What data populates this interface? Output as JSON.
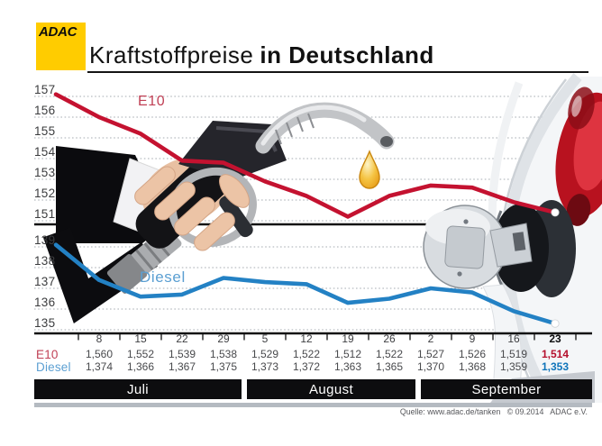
{
  "header": {
    "logo": "ADAC",
    "title_light": "Kraftstoffpreise",
    "title_bold": "in Deutschland"
  },
  "chart_data": {
    "type": "line",
    "title": "Kraftstoffpreise in Deutschland",
    "grid": "dotted-horizontal",
    "legend_position": "inline-labels",
    "x_tick_labels": [
      "8",
      "15",
      "22",
      "29",
      "5",
      "12",
      "19",
      "26",
      "2",
      "9",
      "16",
      "23"
    ],
    "month_groups": [
      {
        "label": "Juli",
        "columns": 4
      },
      {
        "label": "August",
        "columns": 4
      },
      {
        "label": "September",
        "columns": 4
      }
    ],
    "y_axis": {
      "top_section": {
        "series": "E10",
        "ticks": [
          157,
          156,
          155,
          154,
          153,
          152,
          151
        ]
      },
      "bottom_section": {
        "series": "Diesel",
        "ticks": [
          139,
          138,
          137,
          136,
          135
        ]
      }
    },
    "series": [
      {
        "name": "E10",
        "color": "#c41230",
        "label_color": "#c04055",
        "final_color": "#b5102d",
        "edge_start": 1.571,
        "values": [
          1.56,
          1.552,
          1.539,
          1.538,
          1.529,
          1.522,
          1.512,
          1.522,
          1.527,
          1.526,
          1.519,
          1.514
        ],
        "display_values": [
          "1,560",
          "1,552",
          "1,539",
          "1,538",
          "1,529",
          "1,522",
          "1,512",
          "1,522",
          "1,527",
          "1,526",
          "1,519",
          "1,514"
        ]
      },
      {
        "name": "Diesel",
        "color": "#2381c4",
        "label_color": "#5b9fd2",
        "final_color": "#0f74ba",
        "edge_start": 1.391,
        "values": [
          1.374,
          1.366,
          1.367,
          1.375,
          1.373,
          1.372,
          1.363,
          1.365,
          1.37,
          1.368,
          1.359,
          1.353
        ],
        "display_values": [
          "1,374",
          "1,366",
          "1,367",
          "1,375",
          "1,373",
          "1,372",
          "1,363",
          "1,365",
          "1,370",
          "1,368",
          "1,359",
          "1,353"
        ]
      }
    ]
  },
  "footer": {
    "source_line": "Quelle: www.adac.de/tanken   © 09.2014   ADAC e.V."
  }
}
